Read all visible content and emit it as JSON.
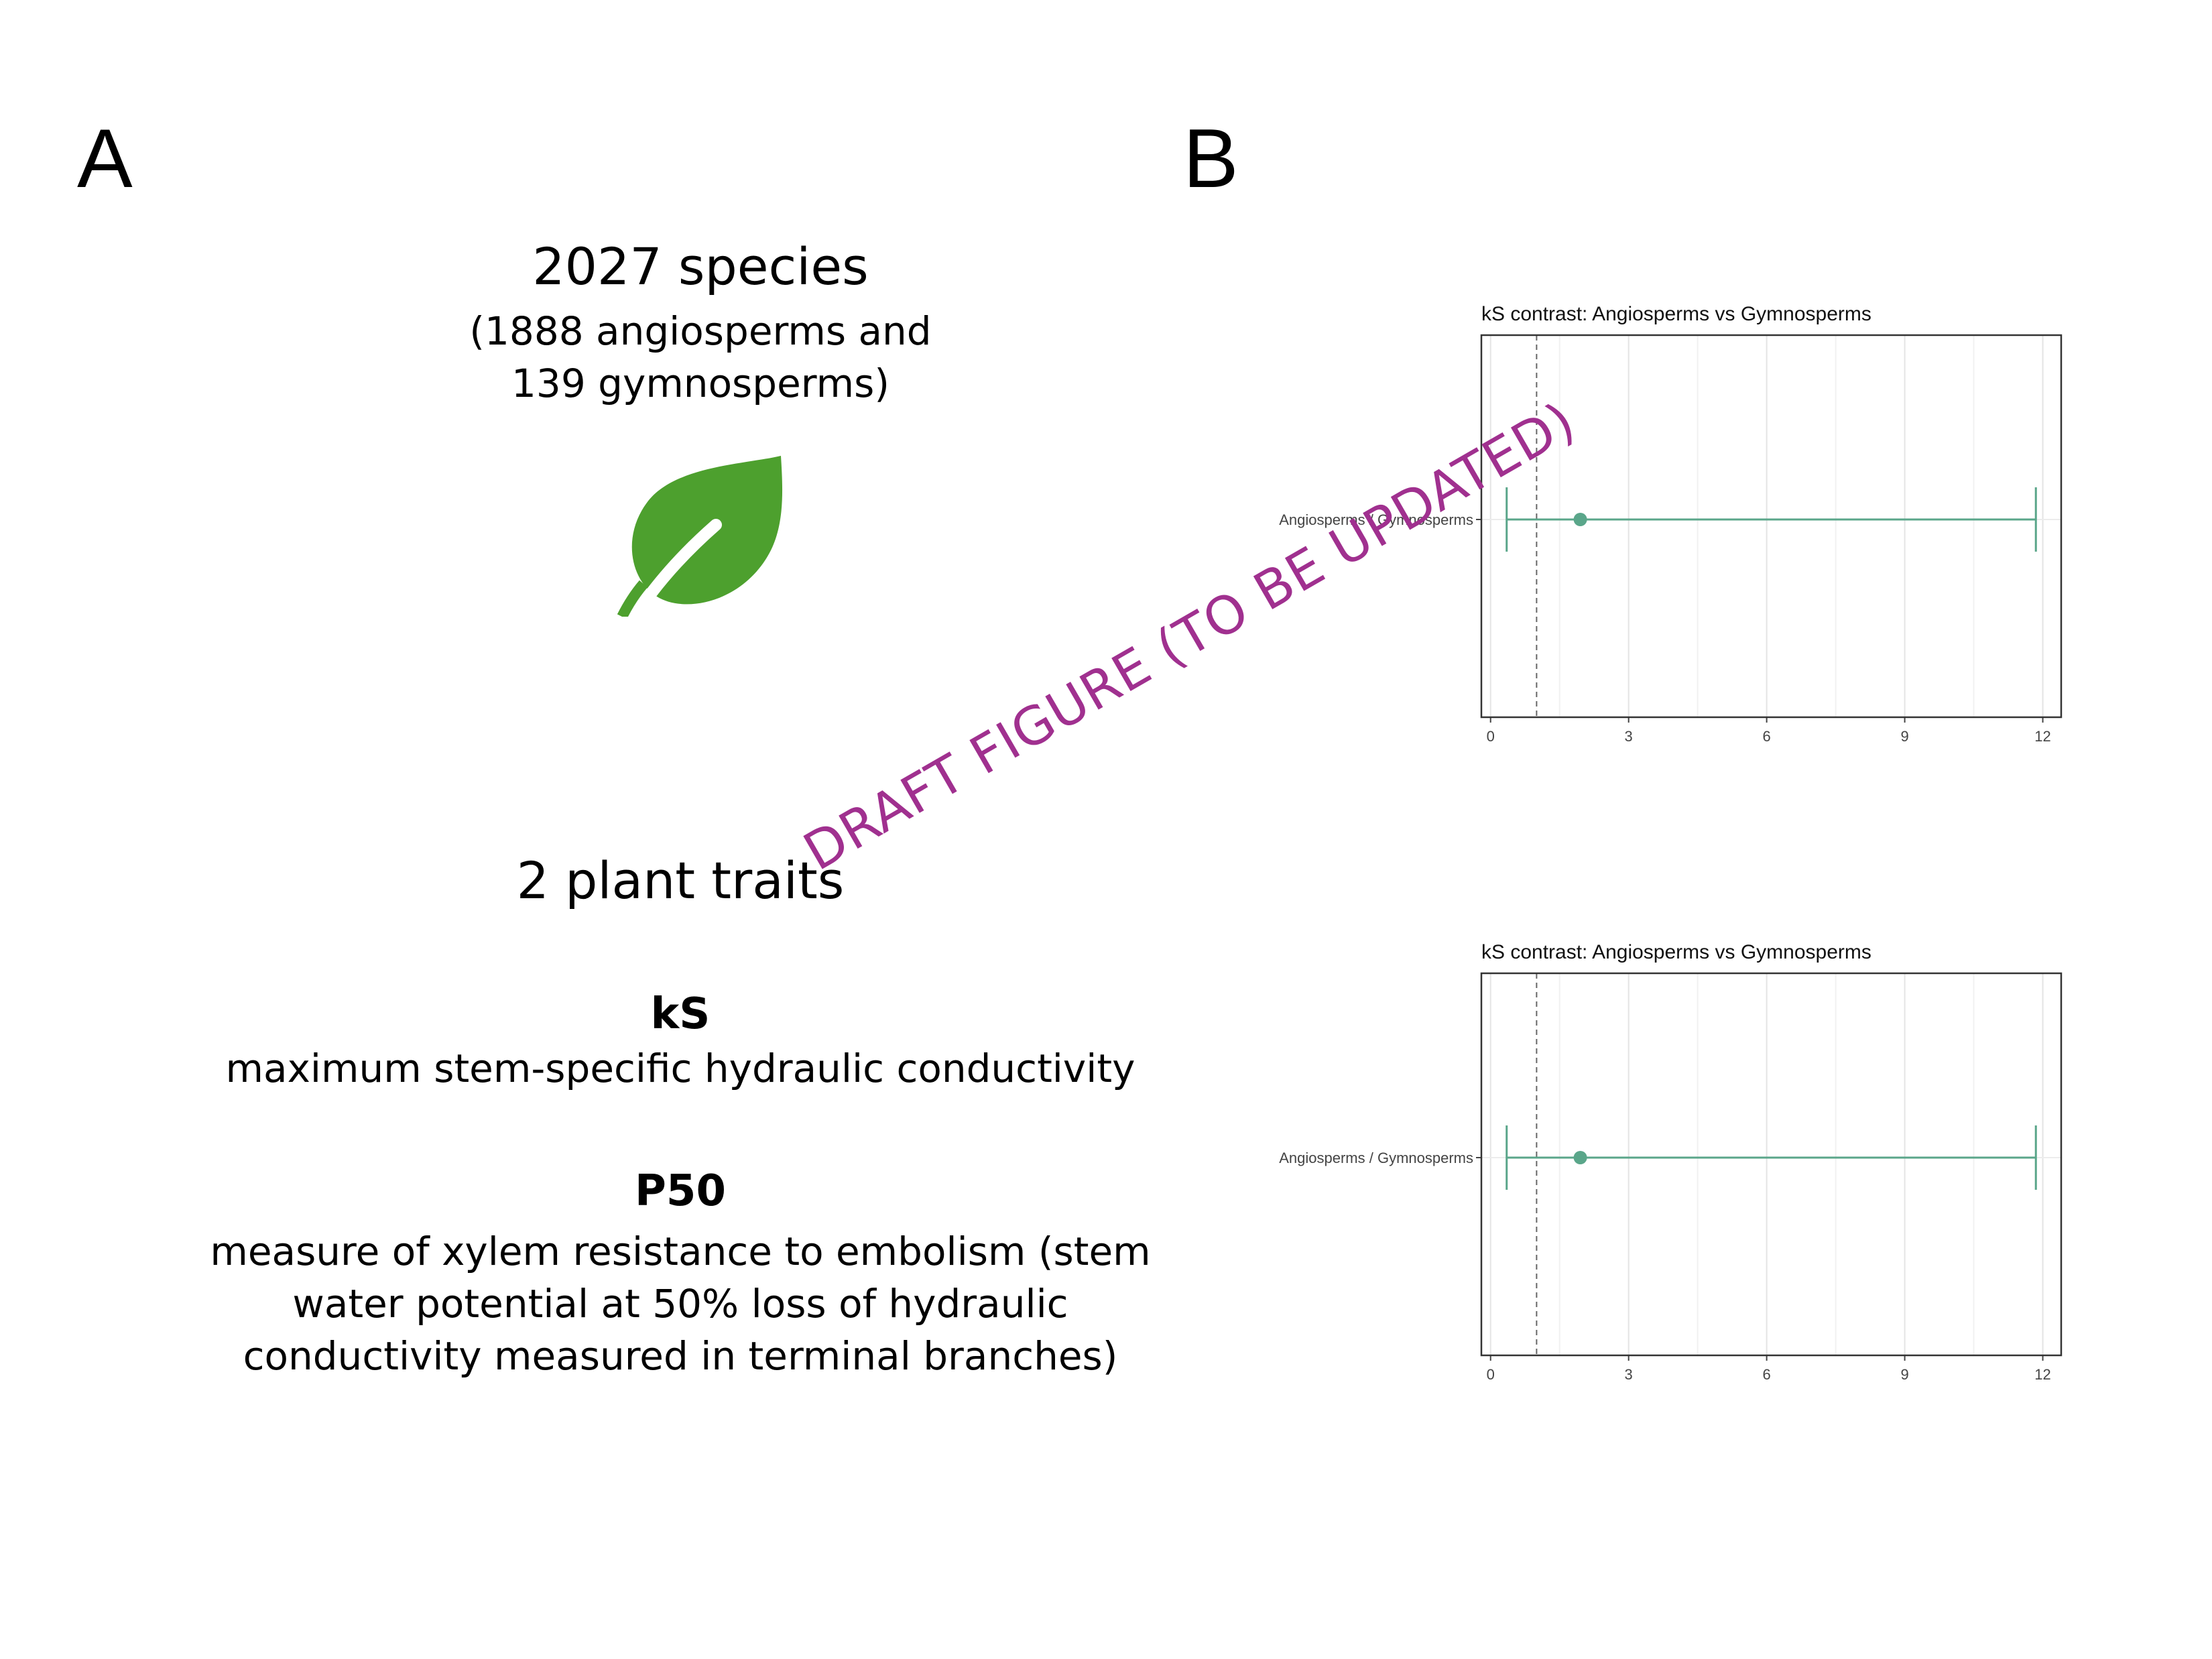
{
  "panel_a": {
    "label": "A",
    "species_count": "2027 species",
    "species_detail_line1": "(1888 angiosperms and",
    "species_detail_line2": "139 gymnosperms)",
    "leaf_icon": "leaf-icon",
    "leaf_color": "#4da02e",
    "traits_heading": "2 plant traits",
    "ks_title": "kS",
    "ks_description": "maximum stem-specific hydraulic conductivity",
    "p50_title": "P50",
    "p50_line1": "measure of xylem resistance to embolism (stem",
    "p50_line2": "water potential at 50% loss of hydraulic",
    "p50_line3": "conductivity measured in terminal branches)"
  },
  "panel_b": {
    "label": "B"
  },
  "watermark": "DRAFT FIGURE (TO BE UPDATED)",
  "colors": {
    "series": "#5aa68a",
    "watermark": "#a0308f"
  },
  "chart_data": [
    {
      "type": "scatter",
      "title": "kS contrast: Angiosperms vs Gymnosperms",
      "categories": [
        "Angiosperms / Gymnosperms"
      ],
      "estimate": [
        1.95
      ],
      "ci_low": [
        0.35
      ],
      "ci_high": [
        11.85
      ],
      "reference_line": 1,
      "xlim": [
        -0.2,
        12.4
      ],
      "xticks": [
        0,
        3,
        6,
        9,
        12
      ],
      "xlabel": "",
      "ylabel": "",
      "grid": true
    },
    {
      "type": "scatter",
      "title": "kS contrast: Angiosperms vs Gymnosperms",
      "categories": [
        "Angiosperms / Gymnosperms"
      ],
      "estimate": [
        1.95
      ],
      "ci_low": [
        0.35
      ],
      "ci_high": [
        11.85
      ],
      "reference_line": 1,
      "xlim": [
        -0.2,
        12.4
      ],
      "xticks": [
        0,
        3,
        6,
        9,
        12
      ],
      "xlabel": "",
      "ylabel": "",
      "grid": true
    }
  ]
}
